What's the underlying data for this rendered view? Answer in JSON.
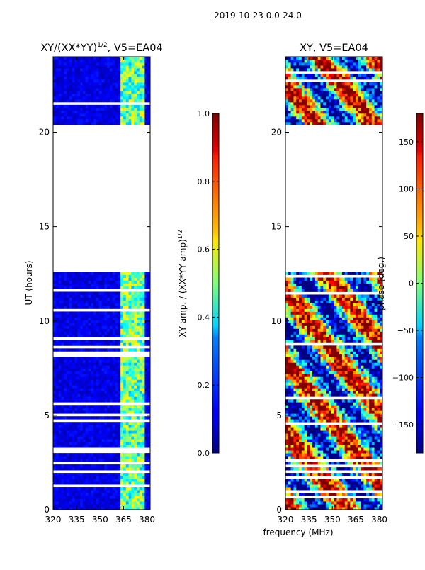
{
  "suptitle": "2019-10-23 0.0-24.0",
  "chart_data": [
    {
      "type": "heatmap",
      "title_main": "XY/(XX*YY)",
      "title_sup": "1/2",
      "title_tail": ", V5=EA04",
      "xlabel": "",
      "ylabel": "UT (hours)",
      "xlim": [
        320,
        382
      ],
      "ylim": [
        0,
        24
      ],
      "xticks": [
        320,
        335,
        350,
        365,
        380
      ],
      "yticks": [
        0,
        5,
        10,
        15,
        20
      ],
      "data_gap_hours": [
        12.5,
        20.3
      ],
      "colorbar": {
        "label_main": "XY amp. / (XX*YY amp)",
        "label_sup": "1/2",
        "range": [
          0.0,
          1.0
        ],
        "ticks": [
          0.0,
          0.2,
          0.4,
          0.6,
          0.8,
          1.0
        ],
        "tick_labels": [
          "0.0",
          "0.2",
          "0.4",
          "0.6",
          "0.8",
          "1.0"
        ]
      }
    },
    {
      "type": "heatmap",
      "title": "XY, V5=EA04",
      "xlabel": "frequency (MHz)",
      "ylabel": "",
      "xlim": [
        320,
        382
      ],
      "ylim": [
        0,
        24
      ],
      "xticks": [
        320,
        335,
        350,
        365,
        380
      ],
      "yticks": [
        0,
        5,
        10,
        15,
        20
      ],
      "data_gap_hours": [
        12.5,
        20.3
      ],
      "colorbar": {
        "label": "phase (deg.)",
        "range": [
          -180,
          180
        ],
        "ticks": [
          -150,
          -100,
          -50,
          0,
          50,
          100,
          150
        ],
        "tick_labels": [
          "−150",
          "−100",
          "−50",
          "0",
          "50",
          "100",
          "150"
        ]
      }
    }
  ]
}
